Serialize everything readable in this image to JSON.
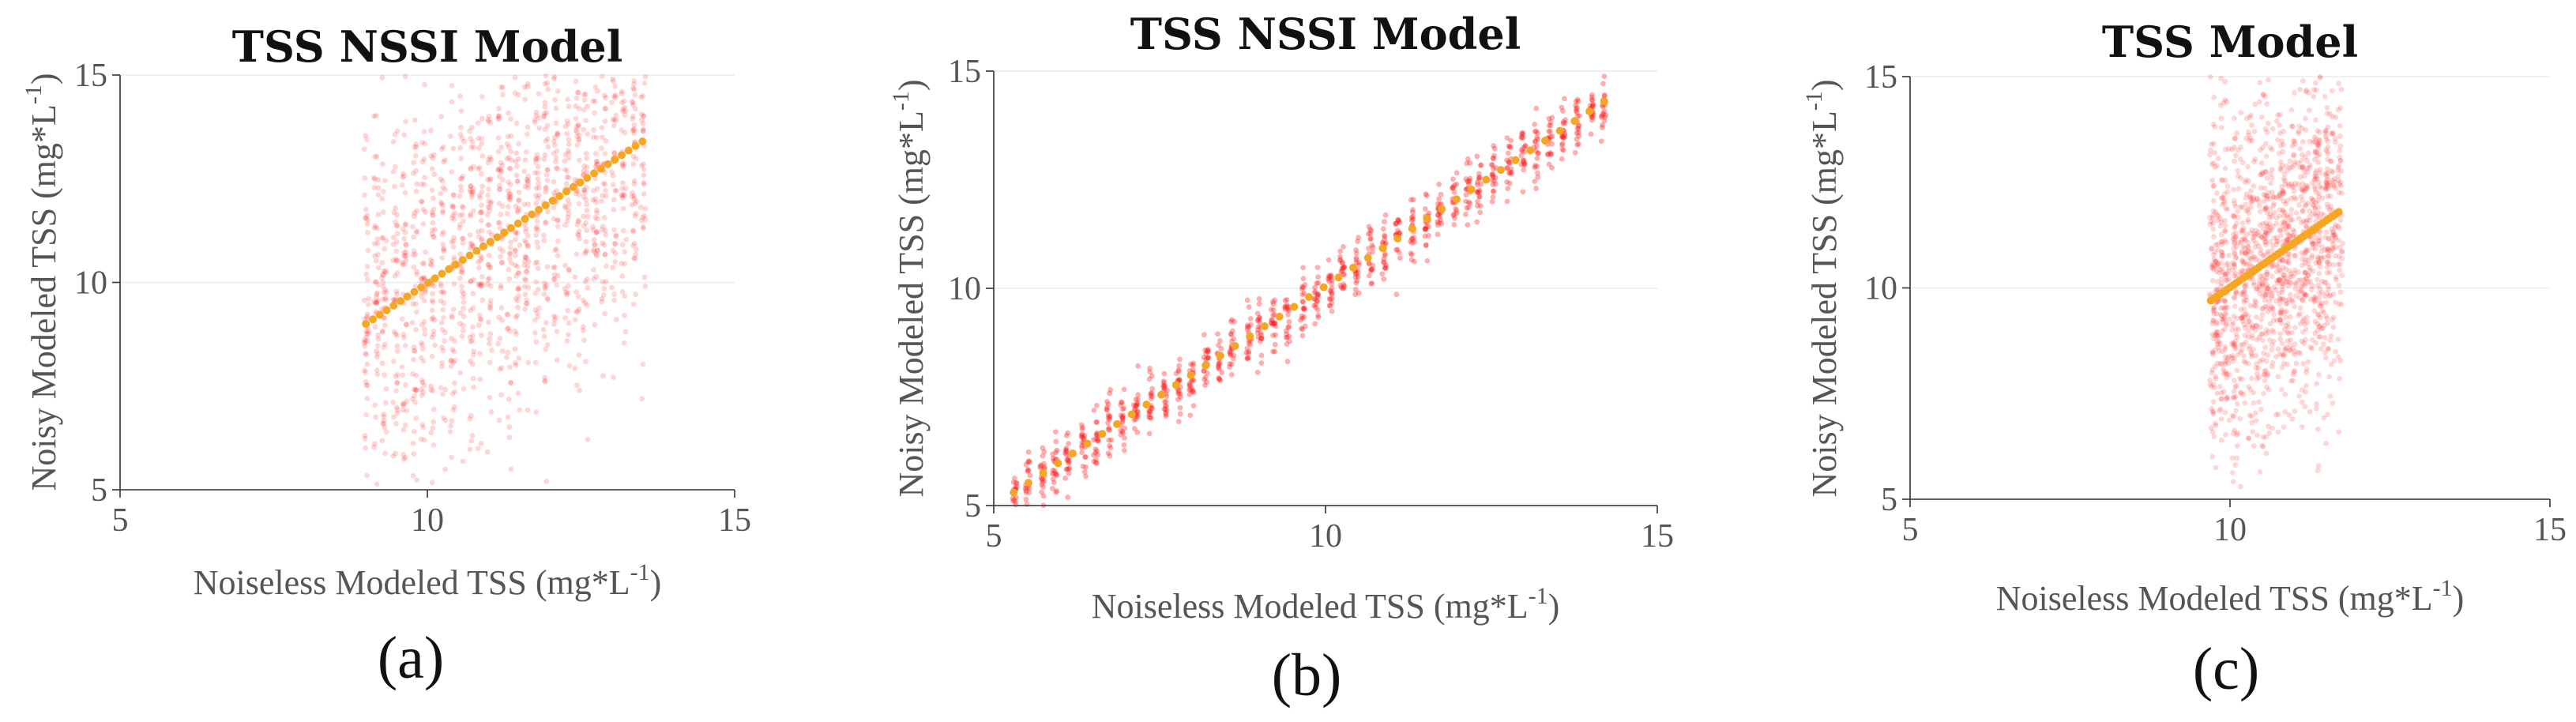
{
  "chart_data": [
    {
      "type": "scatter",
      "panel_label": "(a)",
      "title": "TSS NSSI Model",
      "xlabel": "Noiseless Modeled TSS (mg*L",
      "xlabel_sup": "-1",
      "xlabel_end": ")",
      "ylabel": "Noisy Modeled TSS (mg*L",
      "ylabel_sup": "-1",
      "ylabel_end": ")",
      "xlim": [
        5,
        15
      ],
      "ylim": [
        5,
        15
      ],
      "xticks": [
        "5",
        "10",
        "15"
      ],
      "yticks": [
        "5",
        "10",
        "15"
      ],
      "noiseless_x_range": [
        9.0,
        13.5
      ],
      "noisy_spread_sd": 2.3,
      "fit_line": {
        "x": [
          9.0,
          13.5
        ],
        "y": [
          9.0,
          13.4
        ]
      },
      "series": [
        {
          "name": "noisy samples",
          "color": "#ff1a1a"
        },
        {
          "name": "noiseless fit",
          "color": "#f5a623"
        }
      ]
    },
    {
      "type": "scatter",
      "panel_label": "(b)",
      "title": "TSS NSSI Model",
      "xlabel": "Noiseless Modeled TSS (mg*L",
      "xlabel_sup": "-1",
      "xlabel_end": ")",
      "ylabel": "Noisy Modeled TSS (mg*L",
      "ylabel_sup": "-1",
      "ylabel_end": ")",
      "xlim": [
        5,
        15
      ],
      "ylim": [
        5,
        15
      ],
      "xticks": [
        "5",
        "10",
        "15"
      ],
      "yticks": [
        "5",
        "10",
        "15"
      ],
      "noiseless_x_range": [
        5.3,
        14.2
      ],
      "noisy_spread_sd": 0.35,
      "fit_line": {
        "x": [
          5.3,
          14.2
        ],
        "y": [
          5.3,
          14.3
        ]
      },
      "series": [
        {
          "name": "noisy samples",
          "color": "#ff1a1a"
        },
        {
          "name": "noiseless fit",
          "color": "#f5a623"
        }
      ]
    },
    {
      "type": "scatter",
      "panel_label": "(c)",
      "title": "TSS Model",
      "xlabel": "Noiseless Modeled TSS (mg*L",
      "xlabel_sup": "-1",
      "xlabel_end": ")",
      "ylabel": "Noisy Modeled TSS (mg*L",
      "ylabel_sup": "-1",
      "ylabel_end": ")",
      "xlim": [
        5,
        15
      ],
      "ylim": [
        5,
        15
      ],
      "xticks": [
        "5",
        "10",
        "15"
      ],
      "yticks": [
        "5",
        "10",
        "15"
      ],
      "noiseless_x_range": [
        9.7,
        11.7
      ],
      "noisy_spread_sd": 2.0,
      "fit_line": {
        "x": [
          9.7,
          11.7
        ],
        "y": [
          9.7,
          11.8
        ]
      },
      "series": [
        {
          "name": "noisy samples",
          "color": "#ff1a1a"
        },
        {
          "name": "noiseless fit",
          "color": "#f5a623"
        }
      ]
    }
  ]
}
